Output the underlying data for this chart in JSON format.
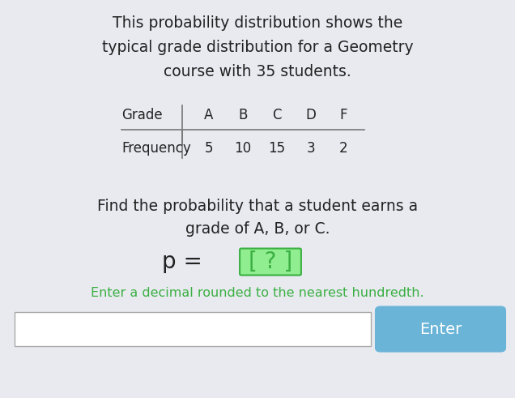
{
  "title_line1": "This probability distribution shows the",
  "title_line2": "typical grade distribution for a Geometry",
  "title_line3": "course with 35 students.",
  "grades": [
    "A",
    "B",
    "C",
    "D",
    "F"
  ],
  "frequencies": [
    "5",
    "10",
    "15",
    "3",
    "2"
  ],
  "question_line1": "Find the probability that a student earns a",
  "question_line2": "grade of A, B, or C.",
  "p_prefix": "p = ",
  "bracket": "[ ? ]",
  "hint": "Enter a decimal rounded to the nearest hundredth.",
  "enter_label": "Enter",
  "bg_color": "#e8eaf0",
  "text_color": "#222222",
  "green_color": "#3cb043",
  "highlight_bg": "#90ee90",
  "button_color": "#6ab4d8",
  "input_border": "#aaaaaa",
  "table_line_color": "#777777",
  "title_fontsize": 13.5,
  "table_fontsize": 12,
  "question_fontsize": 13.5,
  "formula_fontsize": 20,
  "hint_fontsize": 11.5,
  "button_fontsize": 14,
  "fig_width": 6.36,
  "fig_height": 4.91,
  "dpi": 100
}
